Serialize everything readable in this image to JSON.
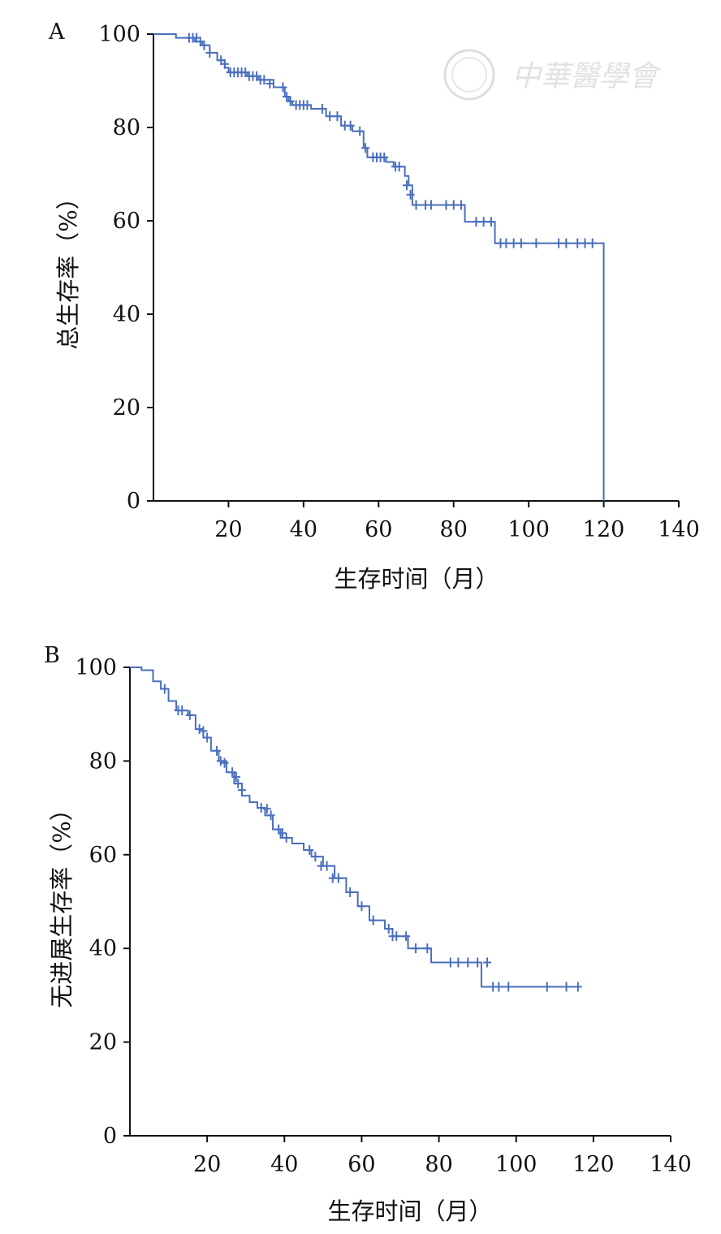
{
  "watermark": {
    "text": "中華醫學會",
    "color": "#d9d9d9"
  },
  "chart_data": [
    {
      "type": "line",
      "panel_label": "A",
      "xlabel": "生存时间（月）",
      "ylabel": "总生存率（%）",
      "xlim": [
        0,
        140
      ],
      "ylim": [
        0,
        100
      ],
      "xticks": [
        20,
        40,
        60,
        80,
        100,
        120,
        140
      ],
      "yticks": [
        0,
        20,
        40,
        60,
        80,
        100
      ],
      "grid": false,
      "color": "#4a6fbd",
      "step_x": [
        0,
        6,
        11,
        13,
        15,
        17,
        19,
        20,
        25,
        28,
        32,
        35,
        36,
        37,
        42,
        46,
        50,
        53,
        56,
        57,
        62,
        64,
        67,
        68,
        69,
        83,
        91,
        120,
        120
      ],
      "step_y": [
        100,
        99.2,
        98.4,
        97.6,
        96,
        94.4,
        92.8,
        91.8,
        91,
        90.2,
        88.6,
        86.6,
        85.6,
        84.8,
        84,
        82.4,
        80.4,
        79.2,
        75.6,
        73.6,
        72.6,
        71.6,
        69.6,
        67.6,
        63.4,
        59.8,
        55.2,
        55.2,
        0
      ],
      "censored": [
        {
          "x": 9.5,
          "y": 99.2
        },
        {
          "x": 10.5,
          "y": 99.2
        },
        {
          "x": 11.5,
          "y": 99.2
        },
        {
          "x": 12.5,
          "y": 98.4
        },
        {
          "x": 13.5,
          "y": 97.6
        },
        {
          "x": 15,
          "y": 96
        },
        {
          "x": 18,
          "y": 94.4
        },
        {
          "x": 19,
          "y": 93.6
        },
        {
          "x": 20.5,
          "y": 91.8
        },
        {
          "x": 21.5,
          "y": 91.8
        },
        {
          "x": 22.5,
          "y": 91.8
        },
        {
          "x": 23.5,
          "y": 91.8
        },
        {
          "x": 24.5,
          "y": 91.8
        },
        {
          "x": 25.5,
          "y": 91
        },
        {
          "x": 26.5,
          "y": 91
        },
        {
          "x": 27.5,
          "y": 91
        },
        {
          "x": 28.5,
          "y": 90.2
        },
        {
          "x": 29.5,
          "y": 90.2
        },
        {
          "x": 31,
          "y": 89.4
        },
        {
          "x": 34.5,
          "y": 88.6
        },
        {
          "x": 35.5,
          "y": 86.6
        },
        {
          "x": 36.5,
          "y": 85.6
        },
        {
          "x": 38,
          "y": 84.8
        },
        {
          "x": 39,
          "y": 84.8
        },
        {
          "x": 40,
          "y": 84.8
        },
        {
          "x": 41,
          "y": 84.8
        },
        {
          "x": 45,
          "y": 84
        },
        {
          "x": 47,
          "y": 82.4
        },
        {
          "x": 49,
          "y": 82.4
        },
        {
          "x": 51,
          "y": 80.4
        },
        {
          "x": 52.5,
          "y": 80.4
        },
        {
          "x": 55,
          "y": 79.2
        },
        {
          "x": 56.5,
          "y": 75.6
        },
        {
          "x": 58.5,
          "y": 73.6
        },
        {
          "x": 59.5,
          "y": 73.6
        },
        {
          "x": 60.5,
          "y": 73.6
        },
        {
          "x": 61.5,
          "y": 73.6
        },
        {
          "x": 64.5,
          "y": 71.6
        },
        {
          "x": 65.5,
          "y": 71.6
        },
        {
          "x": 67.5,
          "y": 67.6
        },
        {
          "x": 68.5,
          "y": 65.6
        },
        {
          "x": 70,
          "y": 63.4
        },
        {
          "x": 72.5,
          "y": 63.4
        },
        {
          "x": 74,
          "y": 63.4
        },
        {
          "x": 78,
          "y": 63.4
        },
        {
          "x": 80,
          "y": 63.4
        },
        {
          "x": 82,
          "y": 63.4
        },
        {
          "x": 86,
          "y": 59.8
        },
        {
          "x": 88,
          "y": 59.8
        },
        {
          "x": 90,
          "y": 59.8
        },
        {
          "x": 92.5,
          "y": 55.2
        },
        {
          "x": 94,
          "y": 55.2
        },
        {
          "x": 96,
          "y": 55.2
        },
        {
          "x": 98,
          "y": 55.2
        },
        {
          "x": 102,
          "y": 55.2
        },
        {
          "x": 108,
          "y": 55.2
        },
        {
          "x": 110,
          "y": 55.2
        },
        {
          "x": 113,
          "y": 55.2
        },
        {
          "x": 115,
          "y": 55.2
        },
        {
          "x": 117,
          "y": 55.2
        }
      ]
    },
    {
      "type": "line",
      "panel_label": "B",
      "xlabel": "生存时间（月）",
      "ylabel": "无进展生存率（%）",
      "xlim": [
        0,
        140
      ],
      "ylim": [
        0,
        100
      ],
      "xticks": [
        20,
        40,
        60,
        80,
        100,
        120,
        140
      ],
      "yticks": [
        0,
        20,
        40,
        60,
        80,
        100
      ],
      "grid": false,
      "color": "#4a6fbd",
      "step_x": [
        0,
        3,
        6,
        8,
        10,
        12,
        15,
        17,
        19,
        21,
        23,
        25,
        27,
        29,
        31,
        33,
        35,
        37,
        39,
        42,
        45,
        47,
        50,
        53,
        56,
        59,
        62,
        66,
        68,
        72,
        78,
        91,
        116
      ],
      "step_y": [
        100,
        99.4,
        97,
        95.4,
        92.8,
        90.8,
        89.8,
        86.8,
        85,
        82.2,
        80,
        77.6,
        75.2,
        72.6,
        71.2,
        70,
        68.4,
        65.4,
        63.6,
        62.4,
        61,
        59.6,
        57.6,
        55,
        52,
        49,
        46,
        44.2,
        42.6,
        40,
        37,
        31.8,
        31.8
      ],
      "censored": [
        {
          "x": 9,
          "y": 95.4
        },
        {
          "x": 12.5,
          "y": 90.8
        },
        {
          "x": 13.5,
          "y": 90.8
        },
        {
          "x": 15.5,
          "y": 89.8
        },
        {
          "x": 18,
          "y": 86.8
        },
        {
          "x": 19,
          "y": 86.4
        },
        {
          "x": 20,
          "y": 85
        },
        {
          "x": 22.5,
          "y": 82.2
        },
        {
          "x": 23.5,
          "y": 80
        },
        {
          "x": 24.5,
          "y": 79.6
        },
        {
          "x": 26.5,
          "y": 77.6
        },
        {
          "x": 27.5,
          "y": 76.6
        },
        {
          "x": 28,
          "y": 75.2
        },
        {
          "x": 29,
          "y": 73.8
        },
        {
          "x": 34,
          "y": 70
        },
        {
          "x": 35.5,
          "y": 69.8
        },
        {
          "x": 36.5,
          "y": 68.4
        },
        {
          "x": 38.5,
          "y": 65.4
        },
        {
          "x": 39.5,
          "y": 64.6
        },
        {
          "x": 40.5,
          "y": 63.6
        },
        {
          "x": 46.5,
          "y": 61
        },
        {
          "x": 48,
          "y": 59.6
        },
        {
          "x": 49.5,
          "y": 57.6
        },
        {
          "x": 51,
          "y": 57.6
        },
        {
          "x": 52.5,
          "y": 55
        },
        {
          "x": 54,
          "y": 55
        },
        {
          "x": 57,
          "y": 52
        },
        {
          "x": 60,
          "y": 49
        },
        {
          "x": 63,
          "y": 46
        },
        {
          "x": 67,
          "y": 44.2
        },
        {
          "x": 68,
          "y": 42.6
        },
        {
          "x": 69,
          "y": 42.6
        },
        {
          "x": 71.5,
          "y": 42.6
        },
        {
          "x": 74,
          "y": 40
        },
        {
          "x": 77,
          "y": 40
        },
        {
          "x": 83,
          "y": 37
        },
        {
          "x": 85,
          "y": 37
        },
        {
          "x": 87.5,
          "y": 37
        },
        {
          "x": 90,
          "y": 37
        },
        {
          "x": 92.5,
          "y": 37
        },
        {
          "x": 94,
          "y": 31.8
        },
        {
          "x": 95.5,
          "y": 31.8
        },
        {
          "x": 98,
          "y": 31.8
        },
        {
          "x": 108,
          "y": 31.8
        },
        {
          "x": 113,
          "y": 31.8
        },
        {
          "x": 116,
          "y": 31.8
        }
      ]
    }
  ]
}
